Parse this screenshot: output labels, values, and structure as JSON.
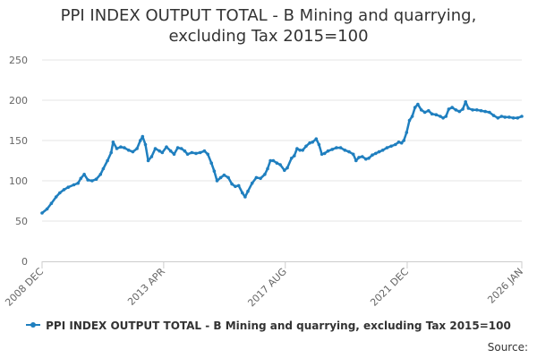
{
  "chart_data": {
    "type": "line",
    "title": "PPI INDEX OUTPUT TOTAL - B Mining and quarrying, excluding Tax 2015=100",
    "title_lines": [
      "PPI INDEX OUTPUT TOTAL - B Mining and quarrying,",
      "excluding Tax 2015=100"
    ],
    "xlabel": "",
    "ylabel": "",
    "ylim": [
      0,
      250
    ],
    "yticks": [
      0,
      50,
      100,
      150,
      200,
      250
    ],
    "xlim": [
      2008.92,
      2026.0
    ],
    "xticks": [
      {
        "label": "2008 DEC",
        "t": 2008.92
      },
      {
        "label": "2013 APR",
        "t": 2013.25
      },
      {
        "label": "2017 AUG",
        "t": 2017.58
      },
      {
        "label": "2021 DEC",
        "t": 2021.92
      },
      {
        "label": "2026 JAN",
        "t": 2026.0
      }
    ],
    "series": [
      {
        "name": "PPI INDEX OUTPUT TOTAL - B Mining and quarrying, excluding Tax 2015=100",
        "color": "#1f7fbf",
        "points": [
          [
            2008.92,
            60
          ],
          [
            2009.1,
            65
          ],
          [
            2009.25,
            72
          ],
          [
            2009.42,
            80
          ],
          [
            2009.55,
            85
          ],
          [
            2009.7,
            89
          ],
          [
            2009.85,
            92
          ],
          [
            2010.05,
            95
          ],
          [
            2010.2,
            97
          ],
          [
            2010.3,
            103
          ],
          [
            2010.42,
            108
          ],
          [
            2010.55,
            101
          ],
          [
            2010.7,
            100
          ],
          [
            2010.85,
            102
          ],
          [
            2011.0,
            108
          ],
          [
            2011.1,
            115
          ],
          [
            2011.25,
            125
          ],
          [
            2011.38,
            135
          ],
          [
            2011.45,
            148
          ],
          [
            2011.58,
            140
          ],
          [
            2011.72,
            142
          ],
          [
            2011.85,
            141
          ],
          [
            2012.0,
            138
          ],
          [
            2012.15,
            136
          ],
          [
            2012.3,
            140
          ],
          [
            2012.42,
            150
          ],
          [
            2012.5,
            155
          ],
          [
            2012.6,
            145
          ],
          [
            2012.7,
            125
          ],
          [
            2012.82,
            130
          ],
          [
            2012.95,
            140
          ],
          [
            2013.1,
            137
          ],
          [
            2013.2,
            135
          ],
          [
            2013.35,
            142
          ],
          [
            2013.5,
            137
          ],
          [
            2013.62,
            133
          ],
          [
            2013.75,
            141
          ],
          [
            2013.88,
            140
          ],
          [
            2014.0,
            137
          ],
          [
            2014.1,
            133
          ],
          [
            2014.25,
            135
          ],
          [
            2014.4,
            134
          ],
          [
            2014.55,
            135
          ],
          [
            2014.7,
            137
          ],
          [
            2014.82,
            133
          ],
          [
            2014.95,
            122
          ],
          [
            2015.05,
            112
          ],
          [
            2015.15,
            100
          ],
          [
            2015.28,
            104
          ],
          [
            2015.4,
            107
          ],
          [
            2015.55,
            104
          ],
          [
            2015.68,
            96
          ],
          [
            2015.8,
            93
          ],
          [
            2015.92,
            94
          ],
          [
            2016.05,
            85
          ],
          [
            2016.15,
            80
          ],
          [
            2016.25,
            87
          ],
          [
            2016.4,
            97
          ],
          [
            2016.55,
            104
          ],
          [
            2016.7,
            103
          ],
          [
            2016.85,
            108
          ],
          [
            2016.95,
            115
          ],
          [
            2017.05,
            125
          ],
          [
            2017.15,
            125
          ],
          [
            2017.28,
            122
          ],
          [
            2017.4,
            120
          ],
          [
            2017.55,
            113
          ],
          [
            2017.65,
            116
          ],
          [
            2017.8,
            128
          ],
          [
            2017.9,
            131
          ],
          [
            2018.0,
            140
          ],
          [
            2018.1,
            138
          ],
          [
            2018.2,
            138
          ],
          [
            2018.32,
            143
          ],
          [
            2018.45,
            147
          ],
          [
            2018.55,
            148
          ],
          [
            2018.68,
            152
          ],
          [
            2018.78,
            145
          ],
          [
            2018.88,
            133
          ],
          [
            2018.98,
            134
          ],
          [
            2019.1,
            137
          ],
          [
            2019.25,
            139
          ],
          [
            2019.4,
            141
          ],
          [
            2019.55,
            141
          ],
          [
            2019.7,
            138
          ],
          [
            2019.85,
            136
          ],
          [
            2020.0,
            133
          ],
          [
            2020.1,
            125
          ],
          [
            2020.2,
            129
          ],
          [
            2020.32,
            130
          ],
          [
            2020.45,
            127
          ],
          [
            2020.55,
            128
          ],
          [
            2020.68,
            132
          ],
          [
            2020.8,
            134
          ],
          [
            2020.92,
            136
          ],
          [
            2021.05,
            138
          ],
          [
            2021.2,
            141
          ],
          [
            2021.35,
            143
          ],
          [
            2021.5,
            145
          ],
          [
            2021.62,
            148
          ],
          [
            2021.72,
            147
          ],
          [
            2021.8,
            150
          ],
          [
            2021.9,
            160
          ],
          [
            2022.0,
            175
          ],
          [
            2022.1,
            180
          ],
          [
            2022.2,
            191
          ],
          [
            2022.3,
            195
          ],
          [
            2022.42,
            188
          ],
          [
            2022.55,
            185
          ],
          [
            2022.68,
            187
          ],
          [
            2022.8,
            183
          ],
          [
            2022.95,
            182
          ],
          [
            2023.1,
            180
          ],
          [
            2023.2,
            178
          ],
          [
            2023.3,
            180
          ],
          [
            2023.4,
            189
          ],
          [
            2023.52,
            191
          ],
          [
            2023.65,
            188
          ],
          [
            2023.78,
            186
          ],
          [
            2023.9,
            189
          ],
          [
            2024.0,
            198
          ],
          [
            2024.1,
            190
          ],
          [
            2024.25,
            188
          ],
          [
            2024.4,
            188
          ],
          [
            2024.55,
            187
          ],
          [
            2024.7,
            186
          ],
          [
            2024.85,
            185
          ],
          [
            2025.0,
            181
          ],
          [
            2025.15,
            178
          ],
          [
            2025.28,
            180
          ],
          [
            2025.4,
            179
          ],
          [
            2025.55,
            179
          ],
          [
            2025.7,
            178
          ],
          [
            2025.85,
            178
          ],
          [
            2026.0,
            180
          ]
        ]
      }
    ],
    "legend_label": "PPI INDEX OUTPUT TOTAL - B Mining and quarrying, excluding Tax 2015=100",
    "legend_position": "bottom-center",
    "grid": "horizontal",
    "source_text": "Source:"
  },
  "colors": {
    "series": "#1f7fbf",
    "grid": "#e6e6e6",
    "axis": "#cccccc",
    "text": "#333333",
    "tick_text": "#666666"
  }
}
